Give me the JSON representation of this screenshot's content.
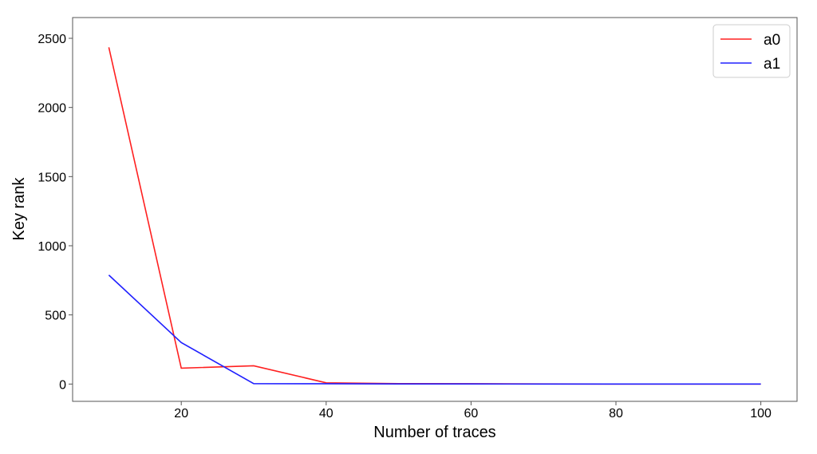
{
  "chart_data": {
    "type": "line",
    "title": "",
    "xlabel": "Number of traces",
    "ylabel": "Key rank",
    "xlim": [
      5,
      105
    ],
    "ylim": [
      -125,
      2650
    ],
    "xticks": [
      20,
      40,
      60,
      80,
      100
    ],
    "yticks": [
      0,
      500,
      1000,
      1500,
      2000,
      2500
    ],
    "grid": false,
    "legend_position": "top-right",
    "x": [
      10,
      20,
      30,
      40,
      50,
      60,
      70,
      80,
      90,
      100
    ],
    "series": [
      {
        "name": "a0",
        "color": "#ff2020",
        "values": [
          2435,
          115,
          132,
          9,
          3,
          2,
          1,
          0,
          0,
          0
        ]
      },
      {
        "name": "a1",
        "color": "#2020ff",
        "values": [
          788,
          300,
          3,
          2,
          1,
          1,
          0,
          0,
          0,
          0
        ]
      }
    ]
  }
}
